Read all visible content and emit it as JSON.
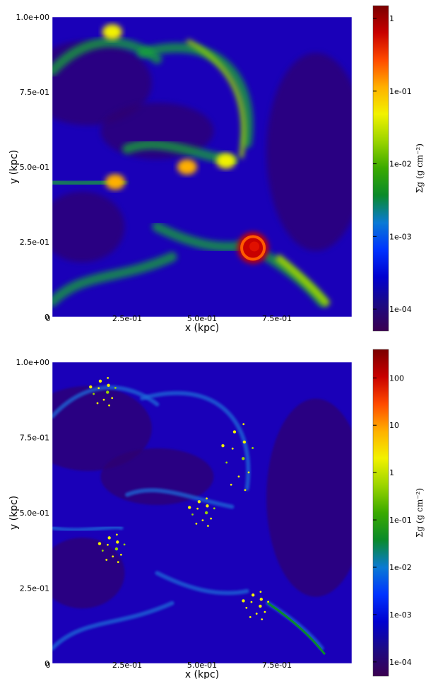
{
  "chart_data": [
    {
      "type": "heatmap",
      "title": "",
      "xlabel": "x (kpc)",
      "ylabel": "y (kpc)",
      "xlim": [
        0,
        1.0
      ],
      "ylim": [
        0,
        1.0
      ],
      "x_ticks": [
        "0",
        "2.5e-01",
        "5.0e-01",
        "7.5e-01"
      ],
      "y_ticks": [
        "0",
        "2.5e-01",
        "5.0e-01",
        "7.5e-01",
        "1.0e+00"
      ],
      "colorbar": {
        "label": "Σg (g cm⁻²)",
        "scale": "log",
        "range": [
          5e-05,
          1.5
        ],
        "ticks": [
          "1e-04",
          "1e-03",
          "1e-02",
          "1e-01",
          "1"
        ],
        "colormap": "jet"
      },
      "features": [
        {
          "kind": "blob",
          "x": 0.2,
          "y": 0.95,
          "density": 0.05
        },
        {
          "kind": "filament-arc",
          "x": 0.63,
          "y": 0.7,
          "density": 0.03
        },
        {
          "kind": "blob",
          "x": 0.45,
          "y": 0.5,
          "density": 0.08
        },
        {
          "kind": "blob",
          "x": 0.58,
          "y": 0.52,
          "density": 0.05
        },
        {
          "kind": "blob",
          "x": 0.21,
          "y": 0.45,
          "density": 0.08
        },
        {
          "kind": "spiral-clump",
          "x": 0.67,
          "y": 0.23,
          "density": 0.8
        },
        {
          "kind": "filament-tail",
          "x": 0.88,
          "y": 0.06,
          "density": 0.02
        }
      ]
    },
    {
      "type": "heatmap",
      "title": "",
      "xlabel": "x (kpc)",
      "ylabel": "y (kpc)",
      "xlim": [
        0,
        1.0
      ],
      "ylim": [
        0,
        1.0
      ],
      "x_ticks": [
        "0",
        "2.5e-01",
        "5.0e-01",
        "7.5e-01"
      ],
      "y_ticks": [
        "0",
        "2.5e-01",
        "5.0e-01",
        "7.5e-01",
        "1.0e+00"
      ],
      "colorbar": {
        "label": "Σg (g cm⁻²)",
        "scale": "log",
        "range": [
          5e-05,
          400
        ],
        "ticks": [
          "1e-04",
          "1e-03",
          "1e-02",
          "1e-01",
          "1",
          "10",
          "100"
        ],
        "colormap": "jet"
      },
      "features": [
        {
          "kind": "fragmented-clumps",
          "x": 0.17,
          "y": 0.9,
          "density": 1.0
        },
        {
          "kind": "fragmented-arc",
          "x": 0.62,
          "y": 0.68,
          "density": 0.5
        },
        {
          "kind": "fragmented-clumps",
          "x": 0.5,
          "y": 0.5,
          "density": 1.0
        },
        {
          "kind": "fragmented-clumps",
          "x": 0.2,
          "y": 0.38,
          "density": 0.5
        },
        {
          "kind": "fragmented-clumps",
          "x": 0.68,
          "y": 0.19,
          "density": 2.0
        },
        {
          "kind": "filament-tail",
          "x": 0.88,
          "y": 0.06,
          "density": 0.05
        }
      ]
    }
  ]
}
